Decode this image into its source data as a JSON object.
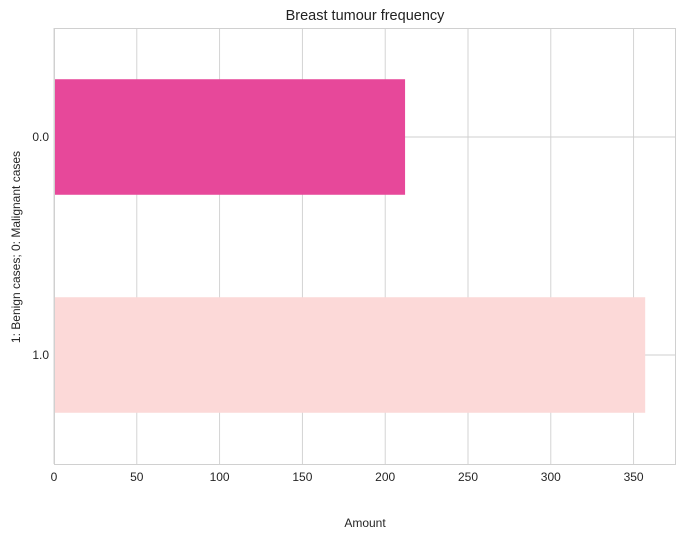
{
  "chart_data": {
    "type": "bar",
    "orientation": "horizontal",
    "title": "Breast tumour frequency",
    "xlabel": "Amount",
    "ylabel": "1: Benign cases; 0: Malignant cases",
    "categories": [
      "0.0",
      "1.0"
    ],
    "values": [
      212,
      357
    ],
    "colors": [
      "#e7489a",
      "#fcd9d8"
    ],
    "xlim": [
      0,
      375
    ],
    "xticks": [
      0,
      50,
      100,
      150,
      200,
      250,
      300,
      350
    ],
    "grid": true,
    "legend": "none"
  }
}
